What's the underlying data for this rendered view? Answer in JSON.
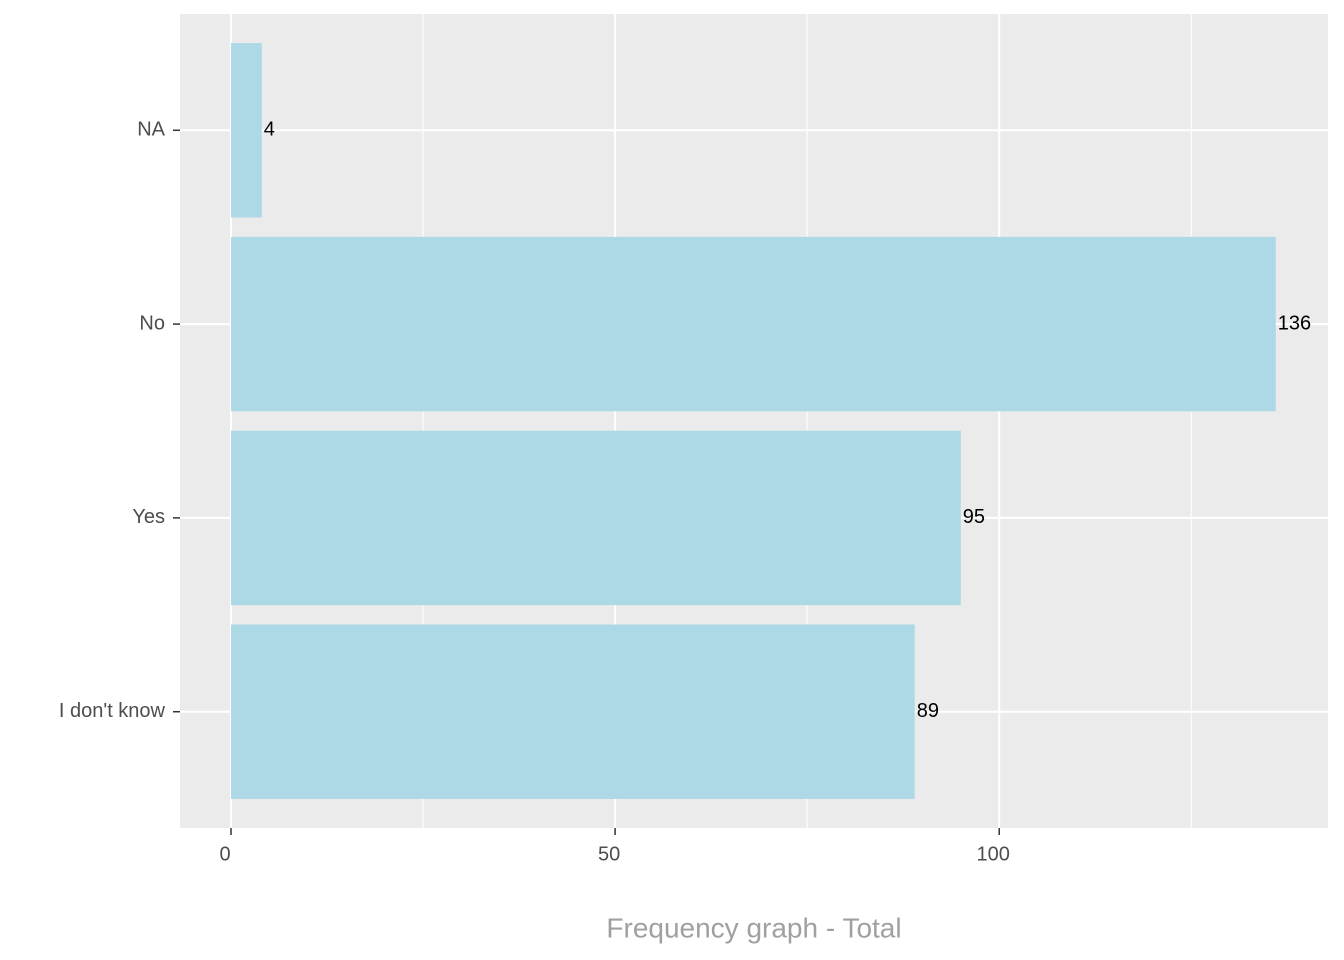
{
  "chart_data": {
    "type": "bar",
    "orientation": "horizontal",
    "x_label": "Frequency graph - Total",
    "categories": [
      "I don't know",
      "Yes",
      "No",
      "NA"
    ],
    "values": [
      89,
      95,
      136,
      4
    ],
    "color": "#add8e6",
    "xlim": [
      -6.64,
      142.8
    ],
    "xticks": [
      0,
      50,
      100
    ],
    "xticks_minor": [
      25,
      75,
      125
    ],
    "grid": true
  }
}
